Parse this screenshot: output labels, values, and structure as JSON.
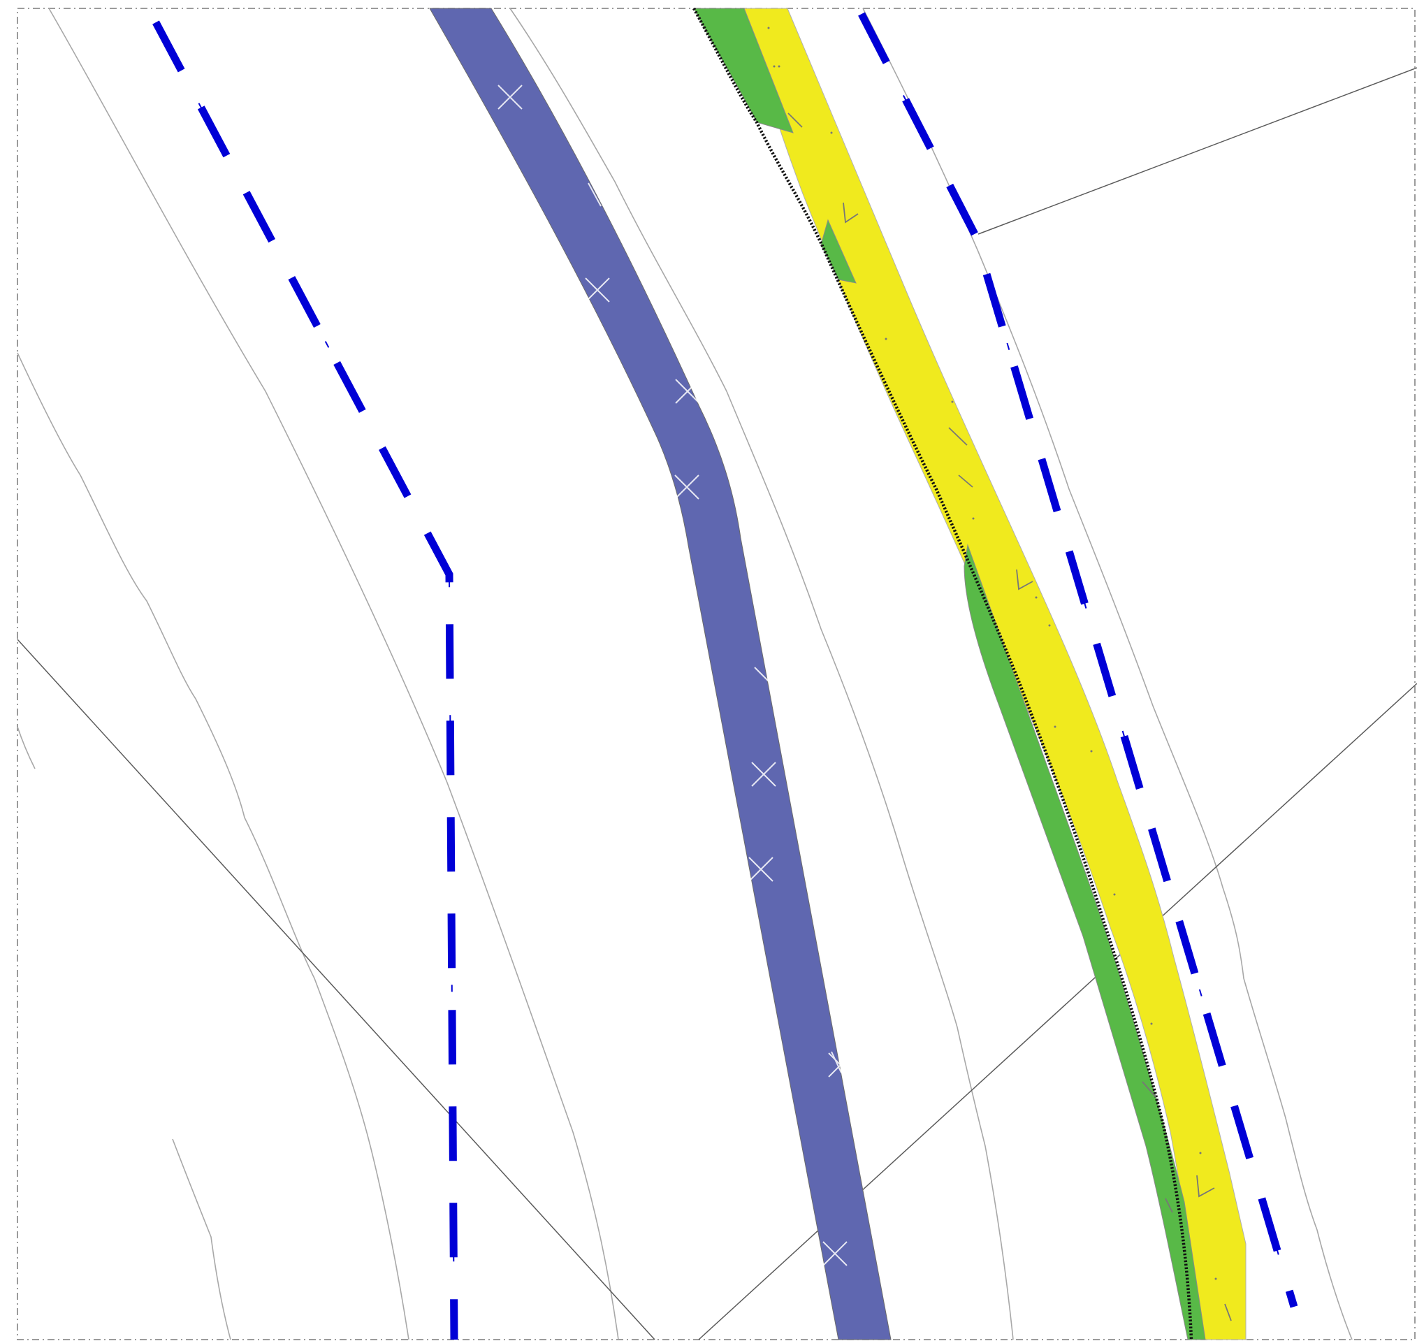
{
  "map": {
    "colors": {
      "background": "#ffffff",
      "frame": "#7a7a7a",
      "contour": "#a8a8a8",
      "parcel_line": "#5a5a5a",
      "road_band": "#5f67b0",
      "road_marker": "#ffffff",
      "yellow_band": "#f0ea1e",
      "green_strip": "#58b947",
      "black_dotted_edge": "#111111",
      "blue_dashdot": "#0000d6",
      "hatch": "#777777"
    },
    "layers": [
      "frame",
      "contour-lines",
      "parcel-lines",
      "blue-dashdot-left",
      "blue-dashdot-right",
      "road-band",
      "yellow-band",
      "green-strips",
      "black-dotted-edge"
    ]
  }
}
